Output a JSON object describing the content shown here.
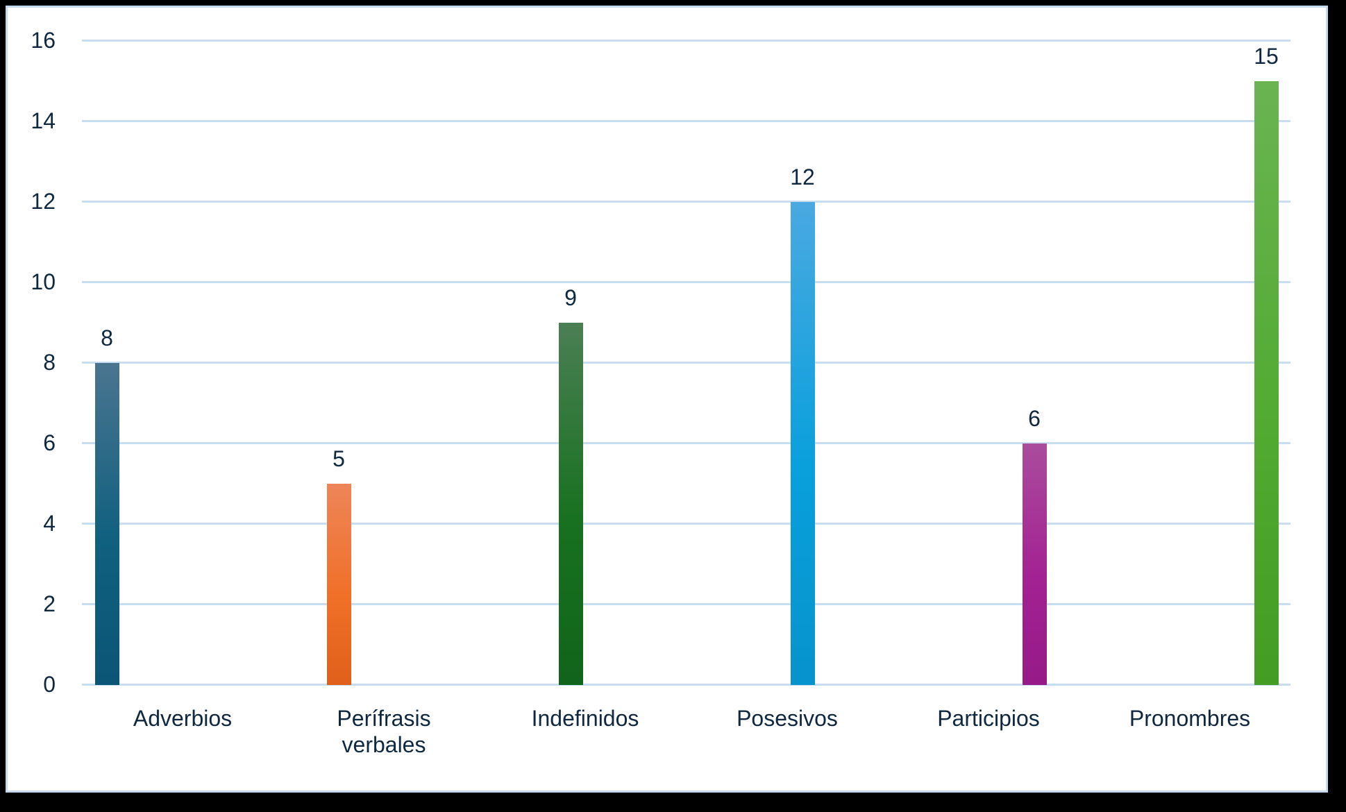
{
  "chart_data": {
    "type": "bar",
    "title": "",
    "xlabel": "",
    "ylabel": "",
    "ylim": [
      0,
      16
    ],
    "yticks": [
      0,
      2,
      4,
      6,
      8,
      10,
      12,
      14,
      16
    ],
    "grid": true,
    "legend": null,
    "categories": [
      "Adverbios",
      "Perífrasis verbales",
      "Indefinidos",
      "Posesivos",
      "Participios",
      "Pronombres"
    ],
    "values": [
      8,
      5,
      9,
      12,
      6,
      15
    ],
    "data_labels": [
      "8",
      "5",
      "9",
      "12",
      "6",
      "15"
    ],
    "colors": [
      "#0b5577",
      "#e8621d",
      "#12651f",
      "#0797d0",
      "#9c1d8c",
      "#43a024"
    ]
  },
  "axis": {
    "y_labels": [
      "0",
      "2",
      "4",
      "6",
      "8",
      "10",
      "12",
      "14",
      "16"
    ]
  },
  "categories": [
    {
      "line1": "Adverbios",
      "line2": "",
      "value_label": "8",
      "color_top": "#4a7590",
      "color_mid": "#10607f",
      "color_bottom": "#0b5577"
    },
    {
      "line1": "Perífrasis",
      "line2": "verbales",
      "value_label": "5",
      "color_top": "#ee8559",
      "color_mid": "#f07028",
      "color_bottom": "#e0601b"
    },
    {
      "line1": "Indefinidos",
      "line2": "",
      "value_label": "9",
      "color_top": "#4b7f54",
      "color_mid": "#17711f",
      "color_bottom": "#11641b"
    },
    {
      "line1": "Posesivos",
      "line2": "",
      "value_label": "12",
      "color_top": "#4aa9e0",
      "color_mid": "#09a0dc",
      "color_bottom": "#0793cb"
    },
    {
      "line1": "Participios",
      "line2": "",
      "value_label": "6",
      "color_top": "#aa4c9c",
      "color_mid": "#a32293",
      "color_bottom": "#961a88"
    },
    {
      "line1": "Pronombres",
      "line2": "",
      "value_label": "15",
      "color_top": "#6ab452",
      "color_mid": "#52ab32",
      "color_bottom": "#439d22"
    }
  ]
}
